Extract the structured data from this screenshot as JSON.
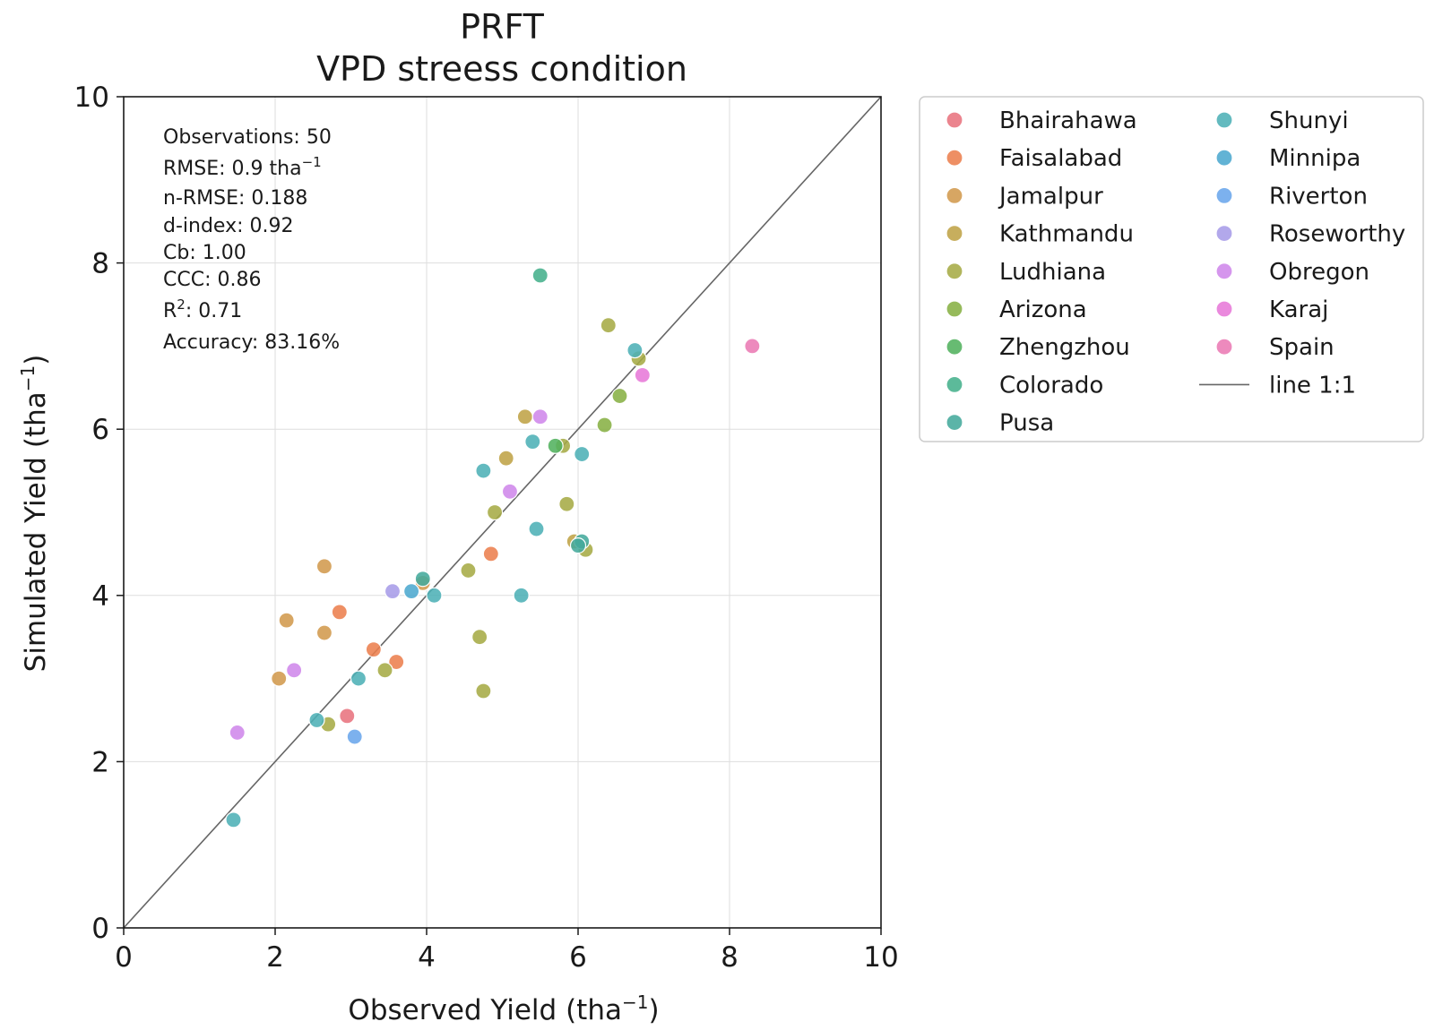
{
  "chart_data": {
    "type": "scatter",
    "title": [
      "PRFT",
      "VPD streess condition"
    ],
    "xlabel": "Observed Yield (tha",
    "ylabel": "Simulated Yield (tha",
    "label_unit_exp": "−1",
    "label_close": ")",
    "xlim": [
      0,
      10
    ],
    "ylim": [
      0,
      10
    ],
    "xticks": [
      0,
      2,
      4,
      6,
      8,
      10
    ],
    "yticks": [
      0,
      2,
      4,
      6,
      8,
      10
    ],
    "grid": true,
    "legend_position": "outside-right",
    "stats": [
      {
        "text": "Observations: 50"
      },
      {
        "text": "RMSE: 0.9 tha",
        "sup": "−1"
      },
      {
        "text": "n-RMSE: 0.188"
      },
      {
        "text": "d-index: 0.92"
      },
      {
        "text": "Cb: 1.00"
      },
      {
        "text": "CCC: 0.86"
      },
      {
        "text": "R",
        "sup": "2",
        "after": ": 0.71"
      },
      {
        "text": "Accuracy: 83.16%"
      }
    ],
    "reference_line": {
      "name": "line 1:1",
      "color": "#666666",
      "points": [
        [
          0,
          0
        ],
        [
          10,
          10
        ]
      ]
    },
    "series": [
      {
        "name": "Bhairahawa",
        "color": "#e8737e",
        "points": [
          [
            2.95,
            2.55
          ]
        ]
      },
      {
        "name": "Faisalabad",
        "color": "#ec7f4e",
        "points": [
          [
            2.85,
            3.8
          ],
          [
            3.3,
            3.35
          ],
          [
            3.6,
            3.2
          ],
          [
            4.85,
            4.5
          ]
        ]
      },
      {
        "name": "Jamalpur",
        "color": "#d29a4d",
        "points": [
          [
            2.65,
            4.35
          ],
          [
            2.15,
            3.7
          ],
          [
            2.65,
            3.55
          ],
          [
            2.05,
            3.0
          ],
          [
            3.95,
            4.15
          ]
        ]
      },
      {
        "name": "Kathmandu",
        "color": "#bfa347",
        "points": [
          [
            5.05,
            5.65
          ],
          [
            5.3,
            6.15
          ],
          [
            5.95,
            4.65
          ]
        ]
      },
      {
        "name": "Ludhiana",
        "color": "#a6ab45",
        "points": [
          [
            6.4,
            7.25
          ],
          [
            4.7,
            3.5
          ],
          [
            4.75,
            2.85
          ],
          [
            3.45,
            3.1
          ],
          [
            2.7,
            2.45
          ],
          [
            5.85,
            5.1
          ],
          [
            4.55,
            4.3
          ],
          [
            4.9,
            5.0
          ],
          [
            5.8,
            5.8
          ],
          [
            6.8,
            6.85
          ],
          [
            6.1,
            4.55
          ]
        ]
      },
      {
        "name": "Arizona",
        "color": "#88b044",
        "points": [
          [
            6.35,
            6.05
          ],
          [
            6.55,
            6.4
          ]
        ]
      },
      {
        "name": "Zhengzhou",
        "color": "#52b25f",
        "points": [
          [
            5.7,
            5.8
          ]
        ]
      },
      {
        "name": "Colorado",
        "color": "#46b08c",
        "points": [
          [
            5.5,
            7.85
          ]
        ]
      },
      {
        "name": "Pusa",
        "color": "#44aa9c",
        "points": [
          [
            3.95,
            4.2
          ],
          [
            6.05,
            4.65
          ],
          [
            6.0,
            4.6
          ]
        ]
      },
      {
        "name": "Shunyi",
        "color": "#4db0b6",
        "points": [
          [
            6.75,
            6.95
          ],
          [
            5.4,
            5.85
          ],
          [
            6.05,
            5.7
          ],
          [
            4.75,
            5.5
          ],
          [
            5.45,
            4.8
          ],
          [
            5.25,
            4.0
          ],
          [
            4.1,
            4.0
          ],
          [
            3.1,
            3.0
          ],
          [
            2.55,
            2.5
          ],
          [
            1.45,
            1.3
          ]
        ]
      },
      {
        "name": "Minnipa",
        "color": "#4ca8cf",
        "points": [
          [
            3.8,
            4.05
          ]
        ]
      },
      {
        "name": "Riverton",
        "color": "#6aa6ec",
        "points": [
          [
            3.05,
            2.3
          ]
        ]
      },
      {
        "name": "Roseworthy",
        "color": "#a79ce8",
        "points": [
          [
            3.55,
            4.05
          ]
        ]
      },
      {
        "name": "Obregon",
        "color": "#cf88ea",
        "points": [
          [
            5.5,
            6.15
          ],
          [
            5.1,
            5.25
          ],
          [
            2.25,
            3.1
          ],
          [
            1.5,
            2.35
          ]
        ]
      },
      {
        "name": "Karaj",
        "color": "#e779d8",
        "points": [
          [
            6.85,
            6.65
          ]
        ]
      },
      {
        "name": "Spain",
        "color": "#ea7ab4",
        "points": [
          [
            8.3,
            7.0
          ]
        ]
      }
    ]
  }
}
